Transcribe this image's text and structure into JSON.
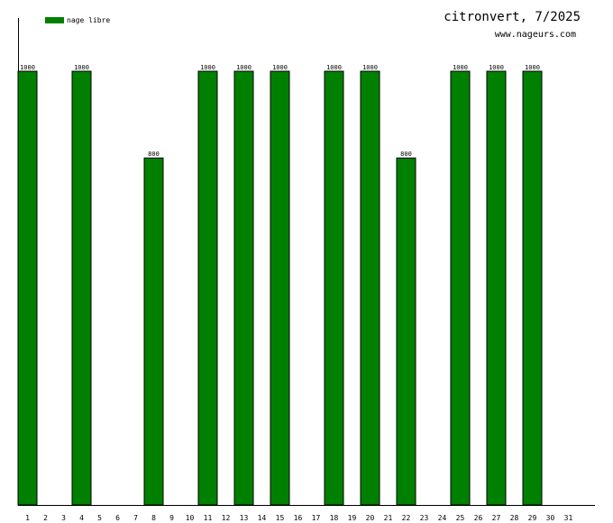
{
  "chart_data": {
    "type": "bar",
    "title": "citronvert, 7/2025",
    "subtitle": "www.nageurs.com",
    "xlabel": "",
    "ylabel": "",
    "ylim": [
      0,
      1000
    ],
    "grid": false,
    "legend_position": "top-left",
    "categories": [
      "1",
      "2",
      "3",
      "4",
      "5",
      "6",
      "7",
      "8",
      "9",
      "10",
      "11",
      "12",
      "13",
      "14",
      "15",
      "16",
      "17",
      "18",
      "19",
      "20",
      "21",
      "22",
      "23",
      "24",
      "25",
      "26",
      "27",
      "28",
      "29",
      "30",
      "31"
    ],
    "series": [
      {
        "name": "nage libre",
        "color": "#008000",
        "values": [
          1000,
          0,
          0,
          1000,
          0,
          0,
          0,
          800,
          0,
          0,
          1000,
          0,
          1000,
          0,
          1000,
          0,
          0,
          1000,
          0,
          1000,
          0,
          800,
          0,
          0,
          1000,
          0,
          1000,
          0,
          1000,
          0,
          0
        ],
        "labels": [
          "1000",
          "",
          "",
          "1000",
          "",
          "",
          "",
          "800",
          "",
          "",
          "1000",
          "",
          "1000",
          "",
          "1000",
          "",
          "",
          "1000",
          "",
          "1000",
          "",
          "800",
          "",
          "",
          "1000",
          "",
          "1000",
          "",
          "1000",
          "",
          ""
        ]
      }
    ]
  }
}
